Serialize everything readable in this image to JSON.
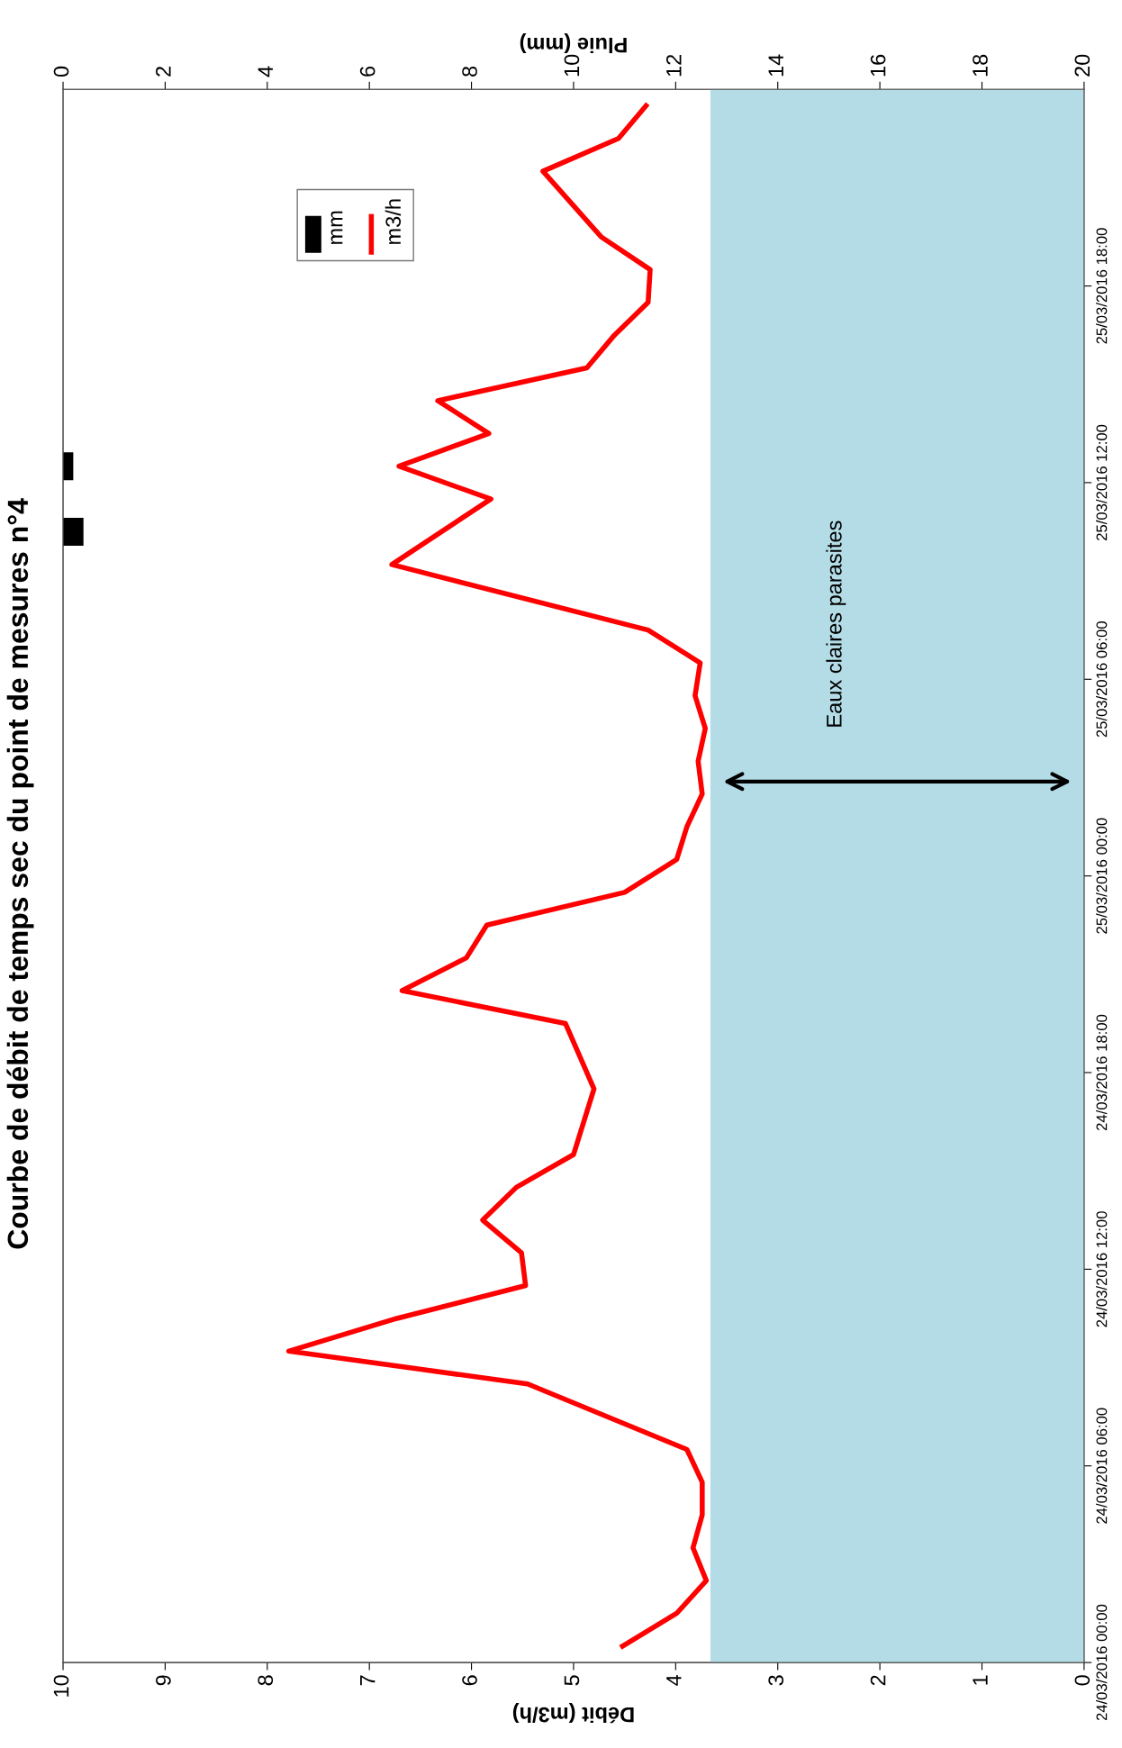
{
  "chart_data": {
    "type": "line",
    "orientation": "horizontal",
    "title": "Courbe de débit de temps sec du point de mesures n°4",
    "xlabel": "Débit (m3/h)",
    "x2label": "Pluie (mm)",
    "series": [
      {
        "name": "mm",
        "type": "bar",
        "axis": "x2",
        "color": "#000000",
        "x": [
          "2016-03-25T10:30",
          "2016-03-25T12:30"
        ],
        "values": [
          0.4,
          0.2
        ]
      },
      {
        "name": "m3/h",
        "color": "#ff0000",
        "x": [
          "2016-03-24T00:30",
          "2016-03-24T01:30",
          "2016-03-24T02:30",
          "2016-03-24T03:30",
          "2016-03-24T04:30",
          "2016-03-24T05:30",
          "2016-03-24T06:30",
          "2016-03-24T08:30",
          "2016-03-24T09:30",
          "2016-03-24T10:30",
          "2016-03-24T11:30",
          "2016-03-24T12:30",
          "2016-03-24T13:30",
          "2016-03-24T14:30",
          "2016-03-24T15:30",
          "2016-03-24T17:30",
          "2016-03-24T19:30",
          "2016-03-24T20:30",
          "2016-03-24T21:30",
          "2016-03-24T22:30",
          "2016-03-24T23:30",
          "2016-03-25T00:30",
          "2016-03-25T01:30",
          "2016-03-25T02:30",
          "2016-03-25T03:30",
          "2016-03-25T04:30",
          "2016-03-25T05:30",
          "2016-03-25T06:30",
          "2016-03-25T07:30",
          "2016-03-25T09:30",
          "2016-03-25T11:30",
          "2016-03-25T12:30",
          "2016-03-25T13:30",
          "2016-03-25T14:30",
          "2016-03-25T15:30",
          "2016-03-25T16:30",
          "2016-03-25T17:30",
          "2016-03-25T18:30",
          "2016-03-25T19:30",
          "2016-03-25T21:30",
          "2016-03-25T22:30",
          "2016-03-25T23:30"
        ],
        "values": [
          4.52,
          3.99,
          3.7,
          3.83,
          3.74,
          3.74,
          3.89,
          5.45,
          7.79,
          6.73,
          5.47,
          5.51,
          5.89,
          5.56,
          5.0,
          4.8,
          5.08,
          6.68,
          6.05,
          5.85,
          4.5,
          3.99,
          3.89,
          3.74,
          3.78,
          3.71,
          3.81,
          3.76,
          4.27,
          6.78,
          5.81,
          6.71,
          5.83,
          6.33,
          4.87,
          4.6,
          4.27,
          4.25,
          4.73,
          5.3,
          4.56,
          4.29
        ]
      }
    ],
    "xlim": [
      10,
      0
    ],
    "xticks": [
      10,
      9,
      8,
      7,
      6,
      5,
      4,
      3,
      2,
      1,
      0
    ],
    "x2lim": [
      0,
      20
    ],
    "x2ticks": [
      0,
      2,
      4,
      6,
      8,
      10,
      12,
      14,
      16,
      18,
      20
    ],
    "ylim": [
      "2016-03-24T00:00",
      "2016-03-26T00:00"
    ],
    "yticks": [
      {
        "value": "2016-03-24T00:00",
        "label": "24/03/2016 00:00"
      },
      {
        "value": "2016-03-24T06:00",
        "label": "24/03/2016 06:00"
      },
      {
        "value": "2016-03-24T12:00",
        "label": "24/03/2016 12:00"
      },
      {
        "value": "2016-03-24T18:00",
        "label": "24/03/2016 18:00"
      },
      {
        "value": "2016-03-25T00:00",
        "label": "25/03/2016 00:00"
      },
      {
        "value": "2016-03-25T06:00",
        "label": "25/03/2016 06:00"
      },
      {
        "value": "2016-03-25T12:00",
        "label": "25/03/2016 12:00"
      },
      {
        "value": "2016-03-25T18:00",
        "label": "25/03/2016 18:00"
      }
    ],
    "bands": [
      {
        "axis": "x",
        "from": 0,
        "to": 3.66,
        "label": "Eaux claires parasites",
        "color": "#b4dce6"
      }
    ],
    "legend": "top left",
    "grid": false
  }
}
